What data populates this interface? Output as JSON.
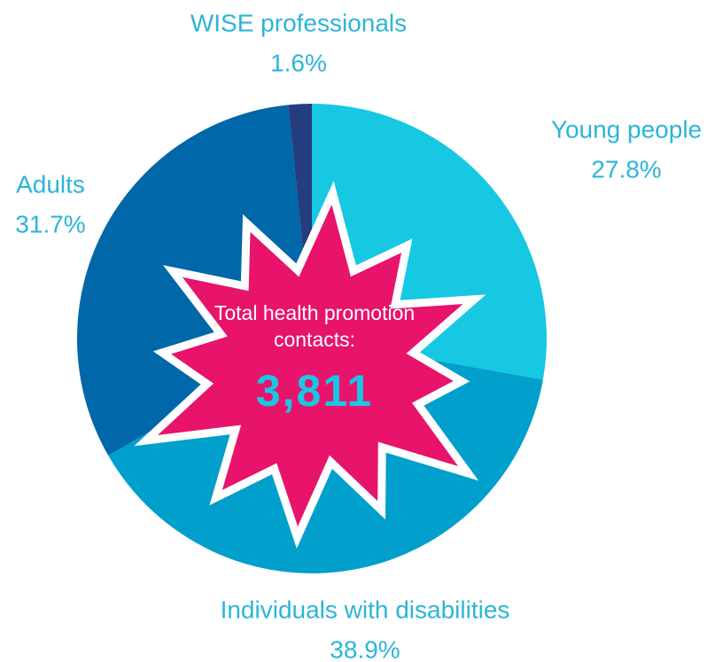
{
  "chart_data": {
    "type": "pie",
    "categories": [
      "Young people",
      "Individuals with disabilities",
      "Adults",
      "WISE professionals"
    ],
    "values": [
      27.8,
      38.9,
      31.7,
      1.6
    ],
    "value_labels": [
      "27.8%",
      "38.9%",
      "31.7%",
      "1.6%"
    ],
    "colors": [
      "#17c8e2",
      "#009fcc",
      "#0067a9",
      "#233d7f"
    ],
    "annotations": [
      "Total health promotion contacts:",
      "3,811"
    ]
  }
}
